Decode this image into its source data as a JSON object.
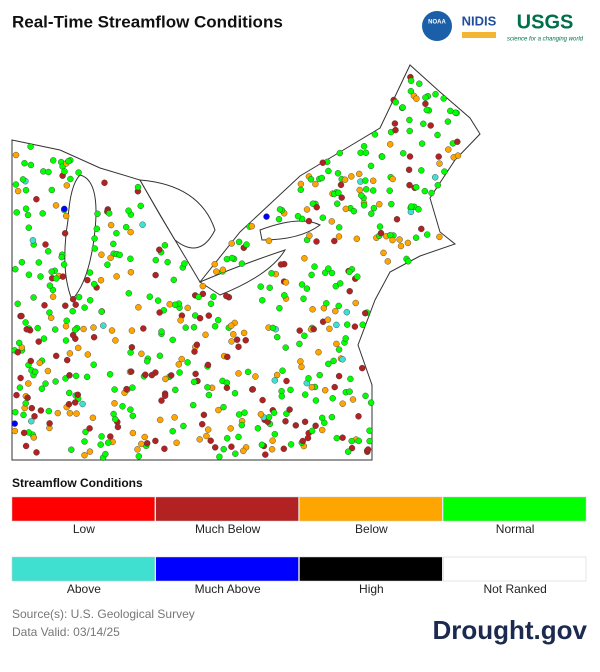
{
  "header": {
    "title": "Real-Time Streamflow Conditions",
    "logos": [
      "NOAA",
      "NIDIS",
      "USGS"
    ],
    "usgs_tagline": "science for a changing world"
  },
  "legend": {
    "title": "Streamflow Conditions",
    "items": [
      {
        "label": "Low",
        "color": "#ff0000"
      },
      {
        "label": "Much Below",
        "color": "#b22222"
      },
      {
        "label": "Below",
        "color": "#ffa500"
      },
      {
        "label": "Normal",
        "color": "#00ff00"
      },
      {
        "label": "Above",
        "color": "#40e0d0"
      },
      {
        "label": "Much Above",
        "color": "#0000ff"
      },
      {
        "label": "High",
        "color": "#000000"
      },
      {
        "label": "Not Ranked",
        "color": "#ffffff"
      }
    ]
  },
  "footer": {
    "source": "Source(s): U.S. Geological Survey",
    "date": "Data Valid: 03/14/25",
    "brand": "Drought.gov"
  }
}
